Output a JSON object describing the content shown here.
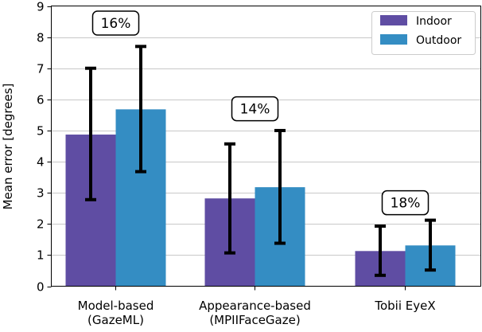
{
  "chart_data": {
    "type": "bar",
    "title": "",
    "xlabel": "",
    "ylabel": "Mean error [degrees]",
    "ylim": [
      0,
      9
    ],
    "yticks": [
      0,
      1,
      2,
      3,
      4,
      5,
      6,
      7,
      8,
      9
    ],
    "grid": "horizontal",
    "legend_position": "top-right",
    "categories": [
      "Model-based\n(GazeML)",
      "Appearance-based\n(MPIIFaceGaze)",
      "Tobii EyeX"
    ],
    "series": [
      {
        "name": "Indoor",
        "color": "#5f4da3",
        "values": [
          4.87,
          2.82,
          1.13
        ],
        "error_low": [
          2.78,
          1.07,
          0.35
        ],
        "error_high": [
          7.0,
          4.57,
          1.93
        ]
      },
      {
        "name": "Outdoor",
        "color": "#348dc3",
        "values": [
          5.68,
          3.18,
          1.31
        ],
        "error_low": [
          3.68,
          1.38,
          0.52
        ],
        "error_high": [
          7.7,
          5.0,
          2.12
        ]
      }
    ],
    "annotations": [
      {
        "text": "16%",
        "category": 0,
        "y": 8.45
      },
      {
        "text": "14%",
        "category": 1,
        "y": 5.7
      },
      {
        "text": "18%",
        "category": 2,
        "y": 2.68
      }
    ]
  }
}
